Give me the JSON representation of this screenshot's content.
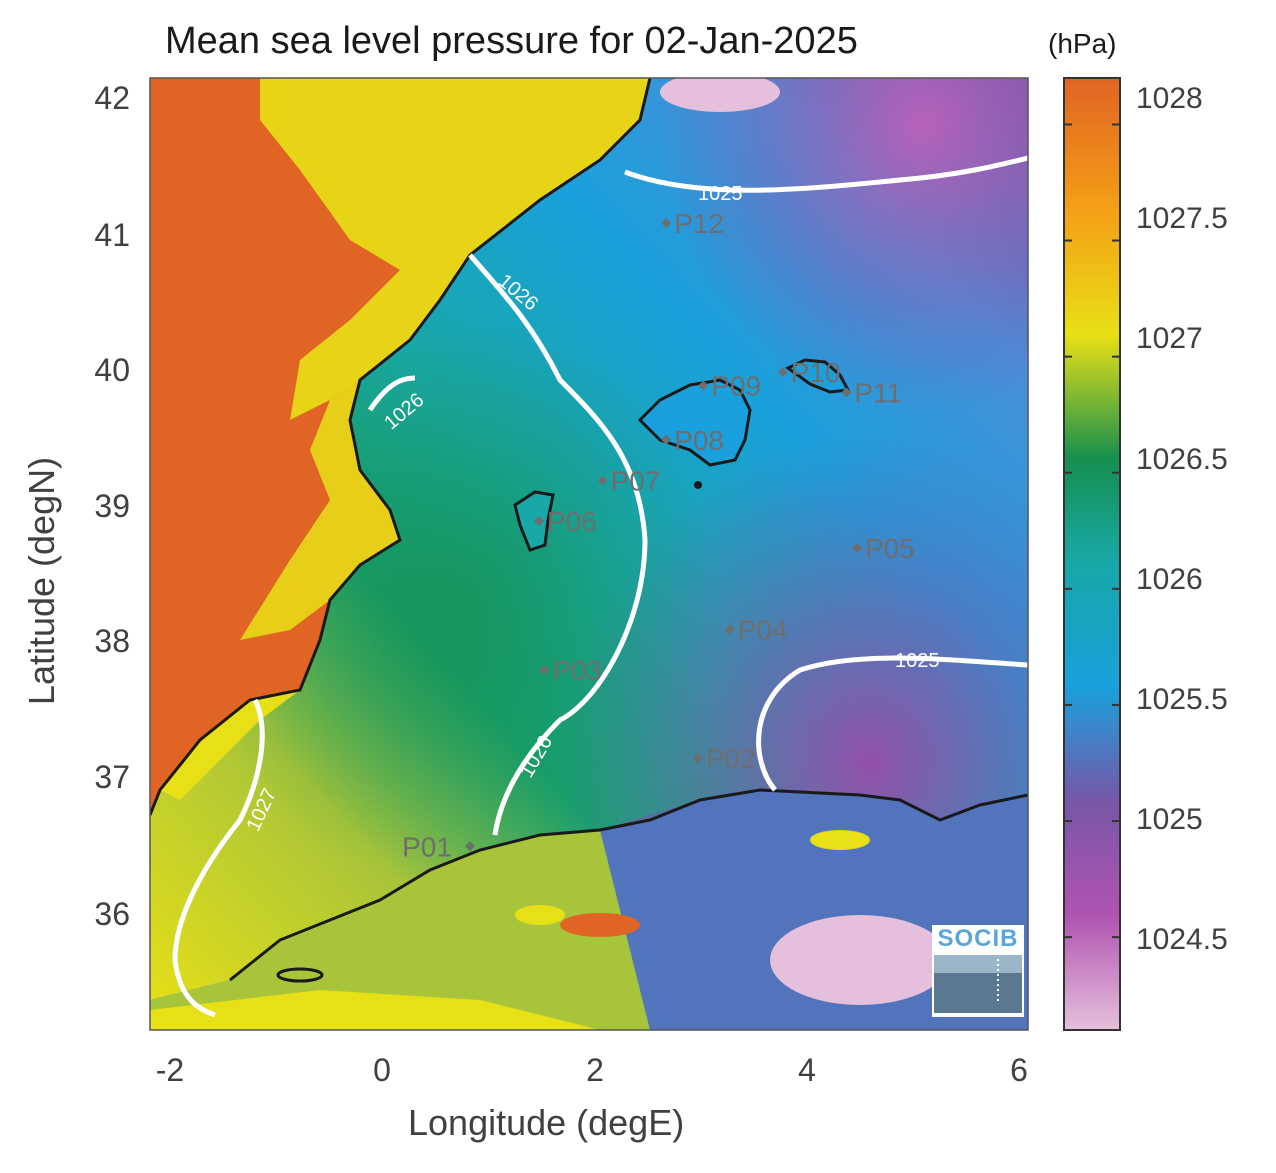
{
  "title": "Mean sea level pressure for 02-Jan-2025",
  "unit": "(hPa)",
  "xlabel": "Longitude (degE)",
  "ylabel": "Latitude (degN)",
  "x_ticks": [
    "-2",
    "0",
    "2",
    "4",
    "6"
  ],
  "y_ticks": [
    "42",
    "41",
    "40",
    "39",
    "38",
    "37",
    "36"
  ],
  "colorbar": {
    "range": [
      1024.1,
      1028.2
    ],
    "ticks": [
      "1028",
      "1027.5",
      "1027",
      "1026.5",
      "1026",
      "1025.5",
      "1025",
      "1024.5"
    ],
    "colors": [
      "#e5c0dc",
      "#b054b0",
      "#7856a8",
      "#1aa0dc",
      "#18a8a8",
      "#16904e",
      "#e8e016",
      "#f5a016",
      "#e06424"
    ]
  },
  "stations": [
    {
      "id": "P01",
      "lon": 0.85,
      "lat": 36.5
    },
    {
      "id": "P02",
      "lon": 3.0,
      "lat": 37.15
    },
    {
      "id": "P03",
      "lon": 1.55,
      "lat": 37.8
    },
    {
      "id": "P04",
      "lon": 3.3,
      "lat": 38.1
    },
    {
      "id": "P05",
      "lon": 4.5,
      "lat": 38.7
    },
    {
      "id": "P06",
      "lon": 1.5,
      "lat": 38.9
    },
    {
      "id": "P07",
      "lon": 2.1,
      "lat": 39.2
    },
    {
      "id": "P08",
      "lon": 2.7,
      "lat": 39.5
    },
    {
      "id": "P09",
      "lon": 3.05,
      "lat": 39.9
    },
    {
      "id": "P10",
      "lon": 3.8,
      "lat": 40.0
    },
    {
      "id": "P11",
      "lon": 4.4,
      "lat": 39.85
    },
    {
      "id": "P12",
      "lon": 2.7,
      "lat": 41.1
    }
  ],
  "contour_labels": [
    "1025",
    "1026",
    "1026",
    "1026",
    "1027",
    "1025"
  ],
  "logo_text": "SOCIB",
  "colors": {
    "land_high": "#e06424",
    "coast": "#1a1a1a",
    "contour": "#ffffff",
    "station": "#6e6e6e"
  }
}
